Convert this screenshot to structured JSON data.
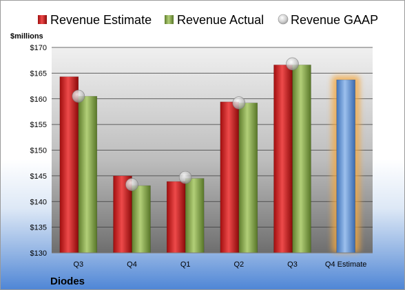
{
  "company": "Diodes",
  "chart_data": {
    "type": "bar",
    "unit_label": "$millions",
    "categories": [
      "Q3",
      "Q4",
      "Q1",
      "Q2",
      "Q3",
      "Q4 Estimate"
    ],
    "series": [
      {
        "name": "Revenue Estimate",
        "color": "#d42020",
        "values": [
          164.3,
          145.0,
          143.9,
          159.4,
          166.6,
          null
        ]
      },
      {
        "name": "Revenue Actual",
        "color": "#8fae50",
        "values": [
          160.5,
          143.1,
          144.5,
          159.2,
          166.6,
          null
        ]
      },
      {
        "name": "Revenue GAAP",
        "color": "#c8c8c8",
        "type": "marker",
        "values": [
          160.5,
          143.3,
          144.7,
          159.2,
          166.8,
          null
        ]
      }
    ],
    "forecast": {
      "category": "Q4 Estimate",
      "value": 163.7,
      "color": "#6a9bd8",
      "glow": "#f4a840"
    },
    "ylim": [
      130,
      170
    ],
    "yticks": [
      130,
      135,
      140,
      145,
      150,
      155,
      160,
      165,
      170
    ],
    "ytick_labels": [
      "$130",
      "$135",
      "$140",
      "$145",
      "$150",
      "$155",
      "$160",
      "$165",
      "$170"
    ],
    "grid": true,
    "legend_position": "top"
  }
}
